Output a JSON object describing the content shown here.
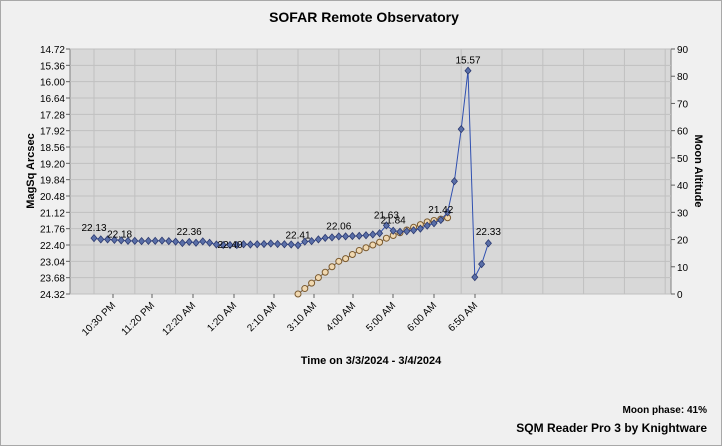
{
  "chart_data": {
    "type": "line",
    "title": "SOFAR Remote Observatory",
    "xlabel": "Time on 3/3/2024 - 3/4/2024",
    "ylabel_left": "MagSq Arcsec",
    "ylabel_right": "Moon Altitude",
    "y_left_ticks": [
      "14.72",
      "15.36",
      "16.00",
      "16.64",
      "17.28",
      "17.92",
      "18.56",
      "19.20",
      "19.84",
      "20.48",
      "21.12",
      "21.76",
      "22.40",
      "23.04",
      "23.68",
      "24.32"
    ],
    "y_left_range": [
      14.72,
      24.32
    ],
    "y_left_inverted": true,
    "y_right_ticks": [
      "0",
      "10",
      "20",
      "30",
      "40",
      "50",
      "60",
      "70",
      "80",
      "90"
    ],
    "y_right_range": [
      0,
      90
    ],
    "x_tick_labels": [
      "10:30 PM",
      "11:20 PM",
      "12:20 AM",
      "1:20 AM",
      "2:10 AM",
      "3:10 AM",
      "4:00 AM",
      "5:00 AM",
      "6:00 AM",
      "6:50 AM"
    ],
    "grid": true,
    "series": [
      {
        "name": "",
        "axis": "left",
        "color": "#5a6fa8",
        "marker": "diamond",
        "values": [
          22.13,
          22.18,
          22.18,
          22.2,
          22.22,
          22.24,
          22.24,
          22.25,
          22.24,
          22.24,
          22.23,
          22.25,
          22.27,
          22.32,
          22.28,
          22.31,
          22.26,
          22.31,
          22.38,
          22.4,
          22.4,
          22.4,
          22.37,
          22.38,
          22.37,
          22.36,
          22.34,
          22.36,
          22.37,
          22.38,
          22.41,
          22.27,
          22.25,
          22.18,
          22.12,
          22.1,
          22.06,
          22.06,
          22.05,
          22.04,
          22.02,
          21.99,
          21.94,
          21.63,
          21.84,
          21.88,
          21.86,
          21.82,
          21.76,
          21.64,
          21.55,
          21.42,
          21.12,
          19.9,
          17.86,
          15.57,
          23.66,
          23.15,
          22.33
        ]
      },
      {
        "name": "",
        "axis": "right",
        "color": "#f0d8b0",
        "marker": "circle",
        "values": [
          0,
          2,
          4,
          6,
          8,
          10,
          12,
          13,
          14.5,
          16,
          17,
          18,
          19,
          20.5,
          21.5,
          22.5,
          23.5,
          24.5,
          25.5,
          26.5,
          27,
          27.5,
          28
        ]
      }
    ],
    "data_labels": [
      "22.13",
      "22.18",
      "22.36",
      "22.40",
      "22.41",
      "22.06",
      "21.63",
      "21.84",
      "21.42",
      "15.57",
      "22.33"
    ]
  },
  "moon_phase": "Moon phase: 41%",
  "credit": "SQM Reader Pro 3 by Knightware"
}
